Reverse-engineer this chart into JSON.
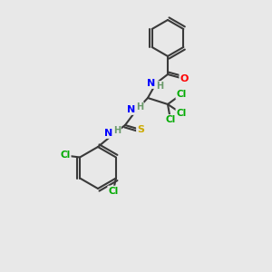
{
  "background_color": "#e8e8e8",
  "bond_color": "#3a3a3a",
  "atom_colors": {
    "N": "#0000ff",
    "O": "#ff0000",
    "S": "#ccaa00",
    "Cl": "#00aa00",
    "H": "#6a9a6a",
    "C": "#3a3a3a"
  }
}
